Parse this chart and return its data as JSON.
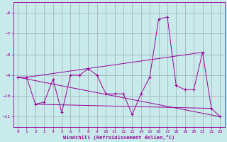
{
  "xlabel": "Windchill (Refroidissement éolien,°C)",
  "bg_color": "#c8eaea",
  "line_color": "#990099",
  "grid_color": "#9999aa",
  "xlim": [
    -0.5,
    23.5
  ],
  "ylim": [
    -11.5,
    -5.5
  ],
  "yticks": [
    -11,
    -10,
    -9,
    -8,
    -7,
    -6
  ],
  "xticks": [
    0,
    1,
    2,
    3,
    4,
    5,
    6,
    7,
    8,
    9,
    10,
    11,
    12,
    13,
    14,
    15,
    16,
    17,
    18,
    19,
    20,
    21,
    22,
    23
  ],
  "main_x": [
    0,
    1,
    2,
    3,
    4,
    5,
    6,
    7,
    8,
    9,
    10,
    11,
    12,
    13,
    14,
    15,
    16,
    17,
    18,
    19,
    20,
    21,
    22,
    23
  ],
  "main_y": [
    -9.1,
    -9.1,
    -10.4,
    -10.3,
    -9.2,
    -10.8,
    -9.0,
    -9.0,
    -8.7,
    -9.0,
    -9.9,
    -9.9,
    -9.9,
    -10.9,
    -9.9,
    -9.1,
    -6.3,
    -6.2,
    -9.5,
    -9.7,
    -9.7,
    -7.9,
    -10.6,
    -11.0
  ],
  "trend1_x": [
    0,
    23
  ],
  "trend1_y": [
    -9.1,
    -11.0
  ],
  "trend2_x": [
    1,
    21
  ],
  "trend2_y": [
    -9.1,
    -7.9
  ],
  "trend3_x": [
    2,
    22
  ],
  "trend3_y": [
    -10.4,
    -10.6
  ]
}
